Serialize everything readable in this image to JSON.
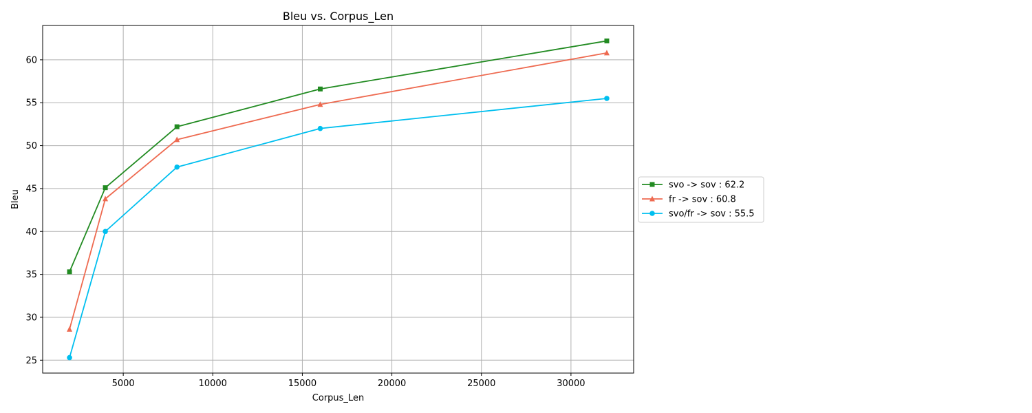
{
  "chart_data": {
    "type": "line",
    "title": "Bleu vs. Corpus_Len",
    "xlabel": "Corpus_Len",
    "ylabel": "Bleu",
    "xlim": [
      500,
      33500
    ],
    "ylim": [
      23.5,
      64
    ],
    "xticks": [
      5000,
      10000,
      15000,
      20000,
      25000,
      30000
    ],
    "yticks": [
      25,
      30,
      35,
      40,
      45,
      50,
      55,
      60
    ],
    "grid": true,
    "legend_position": "right",
    "x": [
      2000,
      4000,
      8000,
      16000,
      32000
    ],
    "series": [
      {
        "name": "svo -> sov : 62.2",
        "color": "#228B22",
        "marker": "square",
        "values": [
          35.3,
          45.1,
          52.2,
          56.6,
          62.2
        ]
      },
      {
        "name": "fr -> sov : 60.8",
        "color": "#EE6A50",
        "marker": "triangle",
        "values": [
          28.6,
          43.8,
          50.7,
          54.8,
          60.8
        ]
      },
      {
        "name": "svo/fr -> sov : 55.5",
        "color": "#00BFEF",
        "marker": "circle",
        "values": [
          25.3,
          40.0,
          47.5,
          52.0,
          55.5
        ]
      }
    ]
  }
}
